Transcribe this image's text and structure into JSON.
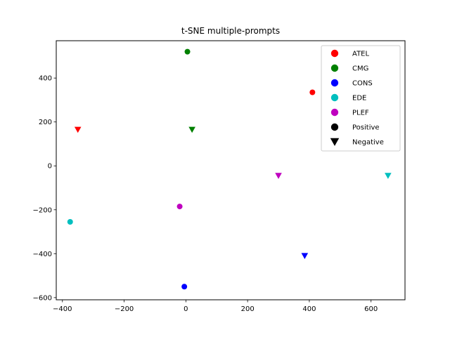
{
  "chart_data": {
    "type": "scatter",
    "title": "t-SNE multiple-prompts",
    "xlabel": "",
    "ylabel": "",
    "xlim": [
      -420,
      710
    ],
    "ylim": [
      -610,
      570
    ],
    "xticks": [
      -400,
      -200,
      0,
      200,
      400,
      600
    ],
    "yticks": [
      -600,
      -400,
      -200,
      0,
      200,
      400
    ],
    "xtick_labels": [
      "−400",
      "−200",
      "0",
      "200",
      "400",
      "600"
    ],
    "ytick_labels": [
      "−600",
      "−400",
      "−200",
      "0",
      "200",
      "400"
    ],
    "grid": false,
    "legend_position": "top-right",
    "series": [
      {
        "name": "ATEL",
        "color": "#ff0000",
        "points": [
          {
            "x": 410,
            "y": 335,
            "marker": "circle"
          },
          {
            "x": -350,
            "y": 165,
            "marker": "triangle-down"
          }
        ]
      },
      {
        "name": "CMG",
        "color": "#008000",
        "points": [
          {
            "x": 5,
            "y": 520,
            "marker": "circle"
          },
          {
            "x": 20,
            "y": 165,
            "marker": "triangle-down"
          }
        ]
      },
      {
        "name": "CONS",
        "color": "#0000ff",
        "points": [
          {
            "x": -5,
            "y": -550,
            "marker": "circle"
          },
          {
            "x": 385,
            "y": -410,
            "marker": "triangle-down"
          }
        ]
      },
      {
        "name": "EDE",
        "color": "#00bfbf",
        "points": [
          {
            "x": -375,
            "y": -255,
            "marker": "circle"
          },
          {
            "x": 655,
            "y": -45,
            "marker": "triangle-down"
          }
        ]
      },
      {
        "name": "PLEF",
        "color": "#bf00bf",
        "points": [
          {
            "x": -20,
            "y": -185,
            "marker": "circle"
          },
          {
            "x": 300,
            "y": -45,
            "marker": "triangle-down"
          }
        ]
      }
    ],
    "legend": [
      {
        "label": "ATEL",
        "color": "#ff0000",
        "marker": "circle"
      },
      {
        "label": "CMG",
        "color": "#008000",
        "marker": "circle"
      },
      {
        "label": "CONS",
        "color": "#0000ff",
        "marker": "circle"
      },
      {
        "label": "EDE",
        "color": "#00bfbf",
        "marker": "circle"
      },
      {
        "label": "PLEF",
        "color": "#bf00bf",
        "marker": "circle"
      },
      {
        "label": "Positive",
        "color": "#000000",
        "marker": "circle"
      },
      {
        "label": "Negative",
        "color": "#000000",
        "marker": "triangle-down"
      }
    ]
  }
}
